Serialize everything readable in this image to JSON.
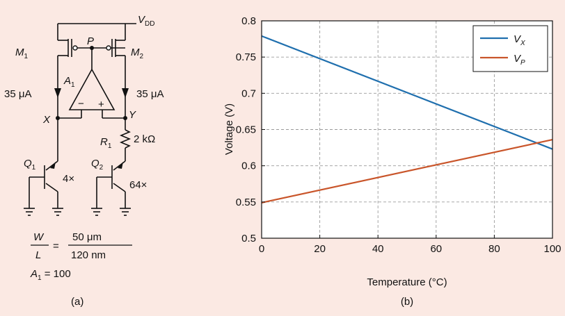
{
  "circuit": {
    "vdd_label": "V",
    "vdd_sub": "DD",
    "node_p": "P",
    "node_x": "X",
    "node_y": "Y",
    "m1_label": "M",
    "m1_sub": "1",
    "m2_label": "M",
    "m2_sub": "2",
    "a1_label": "A",
    "a1_sub": "1",
    "minus_sign": "−",
    "plus_sign": "+",
    "i_left": "35 μA",
    "i_right": "35 μA",
    "r1_label": "R",
    "r1_sub": "1",
    "r1_value": "2 kΩ",
    "q1_label": "Q",
    "q1_sub": "1",
    "q1_mult": "4×",
    "q2_label": "Q",
    "q2_sub": "2",
    "q2_mult": "64×",
    "wl_num": "W",
    "wl_den": "L",
    "wl_eq": "=",
    "wl_val_num": "50 μm",
    "wl_val_den": "120 nm",
    "a1_gain": "A",
    "a1_gain_sub": "1",
    "a1_gain_val": " = 100",
    "caption": "(a)"
  },
  "chart_data": {
    "type": "line",
    "xlabel": "Temperature (°C)",
    "ylabel": "Voltage (V)",
    "xlim": [
      0,
      100
    ],
    "ylim": [
      0.5,
      0.8
    ],
    "xticks": [
      0,
      20,
      40,
      60,
      80,
      100
    ],
    "yticks": [
      0.5,
      0.55,
      0.6,
      0.65,
      0.7,
      0.75,
      0.8
    ],
    "ytick_labels": [
      "0.5",
      "0.55",
      "0.6",
      "0.65",
      "0.7",
      "0.75",
      "0.8"
    ],
    "grid": true,
    "legend_position": "top-right",
    "series": [
      {
        "name": "V",
        "name_sub": "X",
        "color": "#1f6fae",
        "x": [
          0,
          100
        ],
        "y": [
          0.779,
          0.623
        ]
      },
      {
        "name": "V",
        "name_sub": "P",
        "color": "#c9552a",
        "x": [
          0,
          100
        ],
        "y": [
          0.549,
          0.636
        ]
      }
    ],
    "caption": "(b)"
  }
}
